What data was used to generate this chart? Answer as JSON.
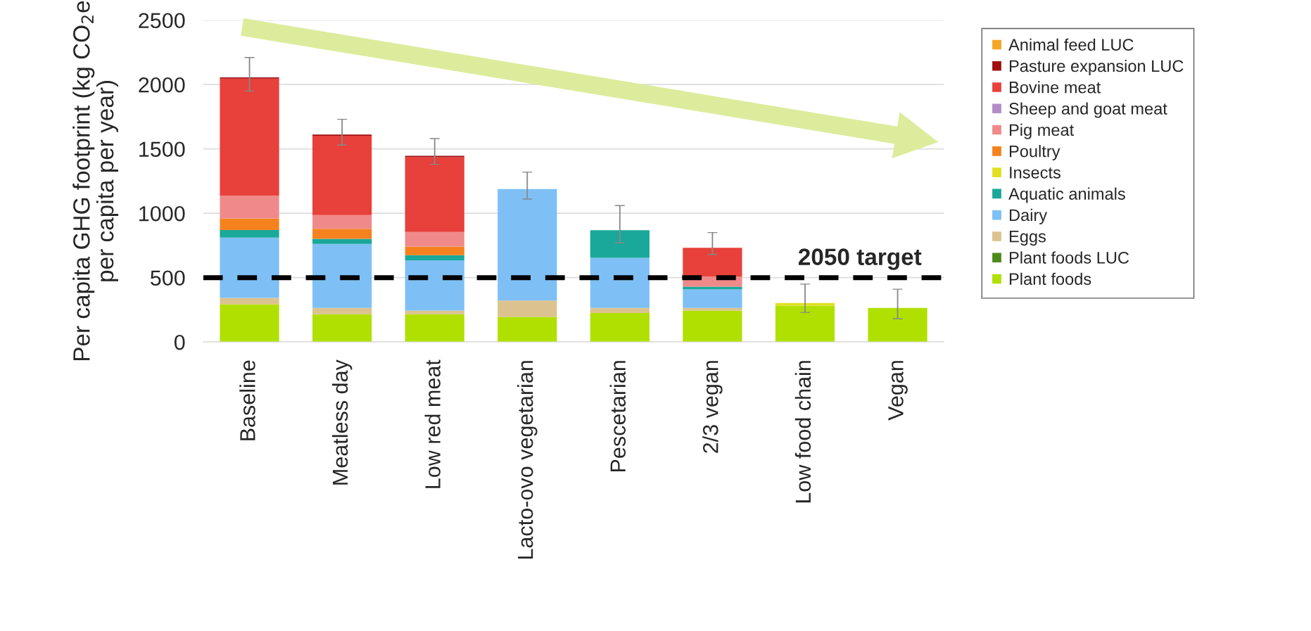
{
  "chart_data": {
    "type": "bar",
    "stacked": true,
    "ylabel": "Per capita GHG footprint (kg CO$_{2}$e\nper capita per year)",
    "categories": [
      "Baseline",
      "Meatless day",
      "Low red meat",
      "Lacto-ovo vegetarian",
      "Pescetarian",
      "2/3 vegan",
      "Low food chain",
      "Vegan"
    ],
    "series": [
      {
        "name": "Plant foods",
        "color": "#b0e000",
        "values": [
          293,
          215,
          215,
          195,
          225,
          244,
          283,
          264
        ],
        "errors": [
          null,
          null,
          null,
          null,
          null,
          null,
          null,
          [
            180,
            410
          ]
        ]
      },
      {
        "name": "Plant foods LUC",
        "color": "#4e8a1a",
        "values": [
          null,
          null,
          null,
          null,
          null,
          null,
          null,
          null
        ]
      },
      {
        "name": "Eggs",
        "color": "#dcc28e",
        "values": [
          50,
          49,
          29,
          127,
          39,
          20,
          null,
          null
        ]
      },
      {
        "name": "Dairy",
        "color": "#7ec0f5",
        "values": [
          468,
          498,
          391,
          866,
          390,
          146,
          null,
          null
        ],
        "errors": [
          null,
          null,
          null,
          [
            1110,
            1320
          ],
          null,
          null,
          null,
          null
        ]
      },
      {
        "name": "Aquatic animals",
        "color": "#19a89a",
        "values": [
          59,
          39,
          39,
          null,
          215,
          20,
          null,
          null
        ],
        "errors": [
          null,
          null,
          null,
          null,
          [
            770,
            1060
          ],
          null,
          null,
          null
        ]
      },
      {
        "name": "Insects",
        "color": "#e0e020",
        "values": [
          null,
          null,
          null,
          null,
          null,
          null,
          20,
          null
        ],
        "errors": [
          null,
          null,
          null,
          null,
          null,
          null,
          [
            230,
            450
          ],
          null
        ]
      },
      {
        "name": "Poultry",
        "color": "#f5821f",
        "values": [
          88,
          78,
          68,
          null,
          null,
          null,
          null,
          null
        ]
      },
      {
        "name": "Pig meat",
        "color": "#f08a8a",
        "values": [
          180,
          107,
          113,
          null,
          null,
          78,
          null,
          null
        ]
      },
      {
        "name": "Sheep and goat meat",
        "color": "#b48cc8",
        "values": [
          null,
          null,
          null,
          null,
          null,
          null,
          null,
          null
        ]
      },
      {
        "name": "Bovine meat",
        "color": "#e8403a",
        "values": [
          908,
          616,
          581,
          null,
          null,
          224,
          null,
          null
        ],
        "errors": [
          null,
          null,
          null,
          null,
          null,
          [
            680,
            850
          ],
          null,
          null
        ]
      },
      {
        "name": "Pasture expansion LUC",
        "color": "#a01010",
        "values": [
          10,
          10,
          10,
          null,
          null,
          null,
          null,
          null
        ],
        "errors": [
          [
            1950,
            2210
          ],
          [
            1530,
            1730
          ],
          [
            1380,
            1580
          ],
          null,
          null,
          null,
          null,
          null
        ]
      },
      {
        "name": "Animal feed LUC",
        "color": "#f5a623",
        "values": [
          null,
          null,
          null,
          null,
          null,
          null,
          null,
          null
        ]
      }
    ],
    "ylim": [
      0,
      2500
    ],
    "yticks": [
      0,
      500,
      1000,
      1500,
      2000,
      2500
    ],
    "ref_lines": [
      {
        "axis": "y",
        "value": 500,
        "label": "2050 target",
        "color": "#000000",
        "line_style": "dashed"
      }
    ],
    "grid": "y",
    "legend": "right"
  }
}
